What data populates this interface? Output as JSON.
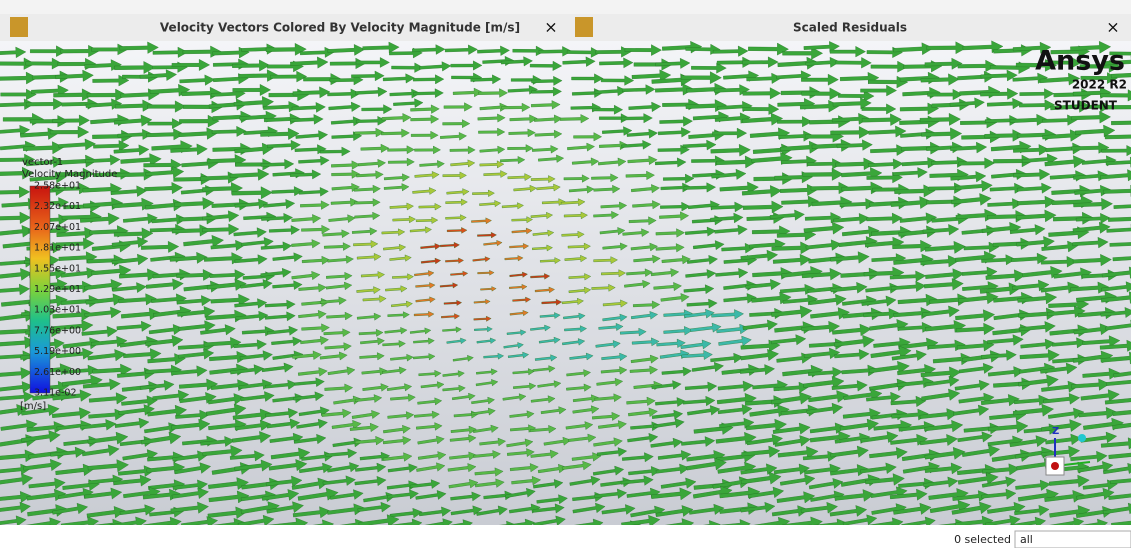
{
  "tabs": [
    {
      "title": "Velocity Vectors Colored By Velocity Magnitude [m/s]",
      "close": "×"
    },
    {
      "title": "Scaled Residuals",
      "close": "×"
    }
  ],
  "legend": {
    "name": "vector-1",
    "quantity": "Velocity Magnitude",
    "labels": [
      "2.58e+01",
      "2.32e+01",
      "2.07e+01",
      "1.81e+01",
      "1.55e+01",
      "1.29e+01",
      "1.03e+01",
      "7.76e+00",
      "5.19e+00",
      "2.61e+00",
      "3.11e-02"
    ],
    "unit": "[m/s]"
  },
  "brand": {
    "name": "Ansys",
    "version": "2022 R2",
    "edition": "STUDENT"
  },
  "triad": {
    "axis": "Z"
  },
  "status": {
    "selected": "0 selected",
    "filter": "all"
  }
}
